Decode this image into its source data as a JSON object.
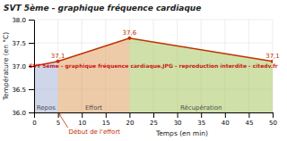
{
  "chart_data": {
    "type": "line",
    "title": "SVT 5ème - graphique fréquence cardiaque",
    "x_label": "Temps (en min)",
    "y_label": "Température (en °C)",
    "x": [
      0,
      5,
      20,
      50
    ],
    "values": [
      37.0,
      37.1,
      37.6,
      37.1
    ],
    "color": "#c03000",
    "xlim": [
      0,
      50
    ],
    "ylim": [
      36.0,
      38.0
    ],
    "xticks": [
      0,
      5,
      10,
      15,
      20,
      25,
      30,
      35,
      40,
      45,
      50
    ],
    "yticks": [
      {
        "value": 36.0,
        "label": "36.0"
      },
      {
        "value": 36.5,
        "label": "36.5"
      },
      {
        "value": 37.0,
        "label": "37.0"
      },
      {
        "value": 37.5,
        "label": "37.5"
      },
      {
        "value": 38.0,
        "label": "38.0"
      }
    ],
    "grid": true,
    "regions": [
      {
        "x_start": 0,
        "x_end": 5,
        "color": "#aab4d8",
        "label": "Repos"
      },
      {
        "x_start": 5,
        "x_end": 20,
        "color": "#e0a060",
        "label": "Effort"
      },
      {
        "x_start": 20,
        "x_end": 50,
        "color": "#a8c860",
        "label": "Récupération"
      }
    ],
    "point_labels": [
      {
        "x": 5,
        "y": 37.1,
        "label": "37,1"
      },
      {
        "x": 20,
        "y": 37.6,
        "label": "37,6"
      },
      {
        "x": 50,
        "y": 37.1,
        "label": "37,1"
      }
    ],
    "annotations": [
      {
        "text": "Début de l'effort",
        "x": 5
      }
    ],
    "watermark": "SVT 5ème - graphique fréquence cardiaque.JPG - reproduction interdite - citedv.fr"
  }
}
